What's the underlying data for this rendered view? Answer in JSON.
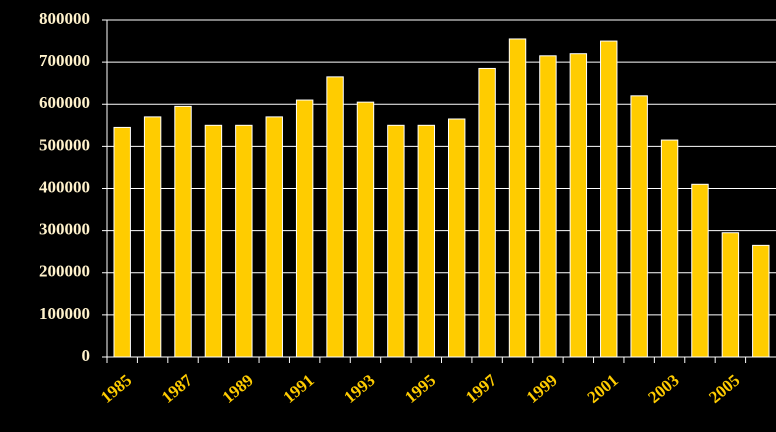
{
  "chart_data": {
    "type": "bar",
    "categories": [
      "1985",
      null,
      "1987",
      null,
      "1989",
      null,
      "1991",
      null,
      "1993",
      null,
      "1995",
      null,
      "1997",
      null,
      "1999",
      null,
      "2001",
      null,
      "2003",
      null,
      "2005",
      null
    ],
    "values": [
      545000,
      570000,
      595000,
      550000,
      550000,
      570000,
      610000,
      665000,
      605000,
      550000,
      550000,
      565000,
      685000,
      755000,
      715000,
      720000,
      750000,
      620000,
      515000,
      410000,
      295000,
      265000
    ],
    "color": "#ffcc00",
    "ylim": [
      0,
      800000
    ],
    "yticks": [
      0,
      100000,
      200000,
      300000,
      400000,
      500000,
      600000,
      700000,
      800000
    ],
    "grid": true
  }
}
